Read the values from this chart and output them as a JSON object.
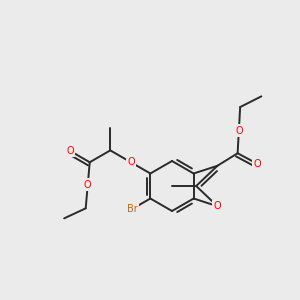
{
  "background_color": "#ebebeb",
  "bond_color": "#2a2a2a",
  "bond_width": 1.4,
  "atom_colors": {
    "O": "#ff0000",
    "Br": "#cc6600",
    "C": "#2a2a2a"
  },
  "font_size": 7.0,
  "fig_size": [
    3.0,
    3.0
  ],
  "dpi": 100
}
